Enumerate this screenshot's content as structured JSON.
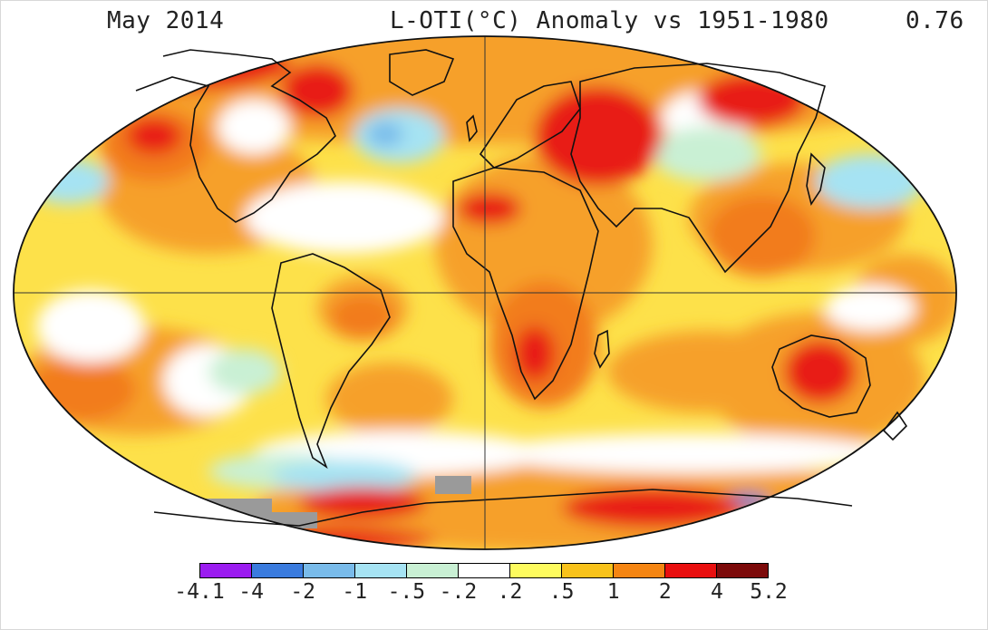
{
  "header": {
    "date": "May 2014",
    "title": "L-OTI(°C) Anomaly vs 1951-1980",
    "global_mean": "0.76"
  },
  "legend": {
    "labels": [
      "-4.1",
      "-4",
      "-2",
      "-1",
      "-.5",
      "-.2",
      ".2",
      ".5",
      "1",
      "2",
      "4",
      "5.2"
    ],
    "colors": [
      "#9b1cf0",
      "#3a7bde",
      "#79bbea",
      "#a6e3f3",
      "#c9f0d4",
      "#ffffff",
      "#fdfb5e",
      "#f8c21a",
      "#f58512",
      "#e90f0f",
      "#7c0a0a"
    ]
  },
  "map_colors": {
    "ocean_base": "#fde14a",
    "orange": "#f6a02c",
    "deep_orange": "#f27b1b",
    "red": "#e81c17",
    "dark_red": "#7e0b0b",
    "white": "#ffffff",
    "light_green": "#c9f0d4",
    "light_blue": "#a6e3f3",
    "blue": "#79bbea",
    "deep_blue": "#3a7bde",
    "gray": "#9a9a9a"
  }
}
